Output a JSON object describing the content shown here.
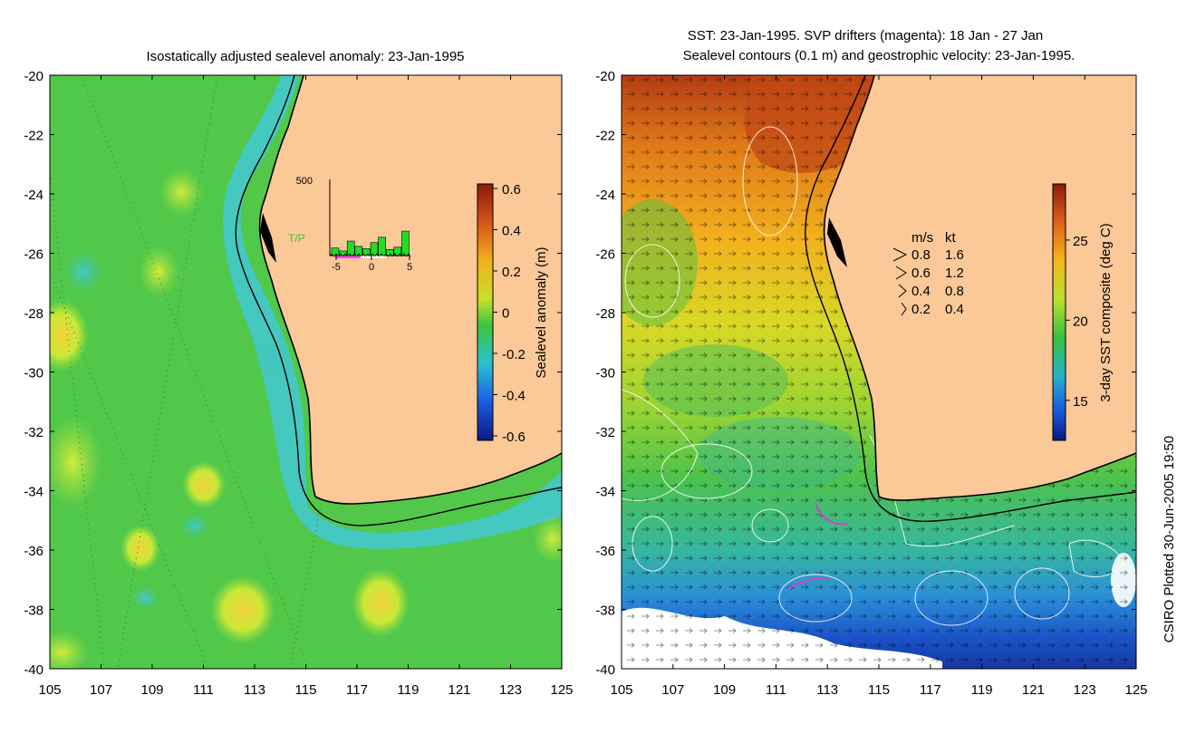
{
  "left_map": {
    "title": "Isostatically adjusted sealevel anomaly: 23-Jan-1995",
    "y_ticks": [
      "-20",
      "-22",
      "-24",
      "-26",
      "-28",
      "-30",
      "-32",
      "-34",
      "-36",
      "-38",
      "-40"
    ],
    "x_ticks": [
      "105",
      "107",
      "109",
      "111",
      "113",
      "115",
      "117",
      "119",
      "121",
      "123",
      "125"
    ],
    "colorbar": {
      "label": "Sealevel anomaly (m)",
      "ticks": [
        "0.6",
        "0.4",
        "0.2",
        "0",
        "-0.2",
        "-0.4",
        "-0.6"
      ]
    },
    "inset": {
      "y_max_label": "500",
      "series_label": "T/P",
      "x_ticks": [
        "-5",
        "0",
        "5"
      ],
      "bar_values": [
        50,
        30,
        95,
        60,
        45,
        85,
        120,
        40,
        55,
        160
      ],
      "y_max": 500
    }
  },
  "right_map": {
    "title_line1": "SST: 23-Jan-1995. SVP drifters (magenta): 18 Jan - 27 Jan",
    "title_line2": "Sealevel contours (0.1 m) and geostrophic velocity: 23-Jan-1995.",
    "y_ticks": [
      "-20",
      "-22",
      "-24",
      "-26",
      "-28",
      "-30",
      "-32",
      "-34",
      "-36",
      "-38",
      "-40"
    ],
    "x_ticks": [
      "105",
      "107",
      "109",
      "111",
      "113",
      "115",
      "117",
      "119",
      "121",
      "123",
      "125"
    ],
    "colorbar": {
      "label": "3-day SST composite (deg C)",
      "ticks": [
        "25",
        "20",
        "15"
      ]
    },
    "velocity_legend": {
      "header_ms": "m/s",
      "header_kt": "kt",
      "rows": [
        {
          "ms": "0.8",
          "kt": "1.6"
        },
        {
          "ms": "0.6",
          "kt": "1.2"
        },
        {
          "ms": "0.4",
          "kt": "0.8"
        },
        {
          "ms": "0.2",
          "kt": "0.4"
        }
      ]
    }
  },
  "credit": "CSIRO Plotted 30-Jun-2005 19:50",
  "colors": {
    "land": "#fbc898",
    "inset_bar": "#22dd22",
    "inset_label": "#33cc33",
    "drifter": "#cc44cc"
  }
}
